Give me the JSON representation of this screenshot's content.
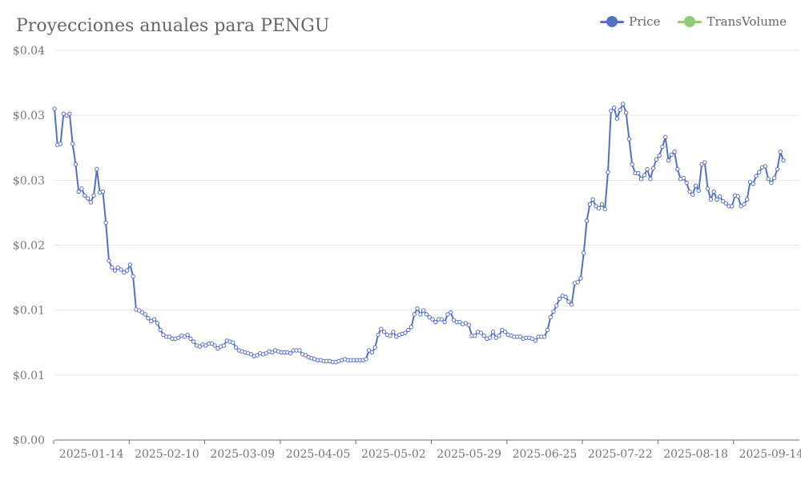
{
  "chart_data": {
    "type": "line",
    "title": "Proyecciones anuales para PENGU",
    "legend": [
      {
        "name": "Price",
        "color": "#5470c6"
      },
      {
        "name": "TransVolume",
        "color": "#91cc75"
      }
    ],
    "y_tick_labels": [
      "$0.00",
      "$0.01",
      "$0.01",
      "$0.02",
      "$0.03",
      "$0.03",
      "$0.04"
    ],
    "x_tick_labels": [
      "2025-01-14",
      "2025-02-10",
      "2025-03-09",
      "2025-04-05",
      "2025-05-02",
      "2025-05-29",
      "2025-06-25",
      "2025-07-22",
      "2025-08-18",
      "2025-09-14"
    ],
    "ylim": [
      0,
      0.04
    ],
    "grid": true,
    "legend_position": "top-right",
    "series": [
      {
        "name": "Price",
        "color": "#5470c6",
        "values": [
          0.034,
          0.0303,
          0.0304,
          0.0335,
          0.0333,
          0.0335,
          0.0304,
          0.0283,
          0.0255,
          0.0258,
          0.0251,
          0.0248,
          0.0244,
          0.0251,
          0.0278,
          0.0254,
          0.0255,
          0.0223,
          0.0184,
          0.0177,
          0.0174,
          0.0177,
          0.0175,
          0.0172,
          0.0174,
          0.018,
          0.0168,
          0.0134,
          0.0133,
          0.0131,
          0.0129,
          0.0125,
          0.0122,
          0.0124,
          0.012,
          0.0113,
          0.0108,
          0.0106,
          0.0106,
          0.0104,
          0.0104,
          0.0105,
          0.0107,
          0.0106,
          0.0108,
          0.0104,
          0.0101,
          0.0097,
          0.0096,
          0.0098,
          0.0097,
          0.0099,
          0.0099,
          0.0097,
          0.0094,
          0.0096,
          0.0097,
          0.0102,
          0.0101,
          0.01,
          0.0095,
          0.0092,
          0.0091,
          0.009,
          0.0089,
          0.0088,
          0.0086,
          0.0087,
          0.0089,
          0.0088,
          0.0089,
          0.0091,
          0.009,
          0.0092,
          0.0091,
          0.009,
          0.009,
          0.009,
          0.0089,
          0.0092,
          0.0092,
          0.0092,
          0.0088,
          0.0087,
          0.0085,
          0.0084,
          0.0083,
          0.0082,
          0.0082,
          0.0081,
          0.0081,
          0.0081,
          0.008,
          0.008,
          0.0081,
          0.0082,
          0.0083,
          0.0082,
          0.0082,
          0.0082,
          0.0082,
          0.0082,
          0.0082,
          0.0083,
          0.0092,
          0.009,
          0.0095,
          0.0108,
          0.0114,
          0.0111,
          0.0108,
          0.0107,
          0.0111,
          0.0106,
          0.0108,
          0.0109,
          0.011,
          0.0113,
          0.0116,
          0.0129,
          0.0135,
          0.0129,
          0.0133,
          0.0129,
          0.0126,
          0.0124,
          0.0121,
          0.0124,
          0.0124,
          0.0121,
          0.0129,
          0.0131,
          0.0123,
          0.0121,
          0.0121,
          0.0119,
          0.012,
          0.0118,
          0.0107,
          0.0107,
          0.0111,
          0.011,
          0.0107,
          0.0104,
          0.0105,
          0.0111,
          0.0105,
          0.0107,
          0.0113,
          0.0111,
          0.0108,
          0.0107,
          0.0106,
          0.0106,
          0.0106,
          0.0104,
          0.0105,
          0.0105,
          0.0104,
          0.0102,
          0.0106,
          0.0106,
          0.0106,
          0.0113,
          0.0126,
          0.0132,
          0.0138,
          0.0145,
          0.0148,
          0.0147,
          0.0142,
          0.0139,
          0.0161,
          0.0162,
          0.0166,
          0.0192,
          0.0225,
          0.0242,
          0.0247,
          0.024,
          0.0238,
          0.0242,
          0.0237,
          0.0275,
          0.0338,
          0.0341,
          0.033,
          0.0339,
          0.0345,
          0.0336,
          0.0309,
          0.0283,
          0.0274,
          0.0274,
          0.0268,
          0.0272,
          0.0278,
          0.0268,
          0.0279,
          0.0288,
          0.0292,
          0.0301,
          0.0311,
          0.0287,
          0.0293,
          0.0296,
          0.0278,
          0.0268,
          0.0269,
          0.0264,
          0.0255,
          0.0252,
          0.0261,
          0.0256,
          0.0283,
          0.0285,
          0.0258,
          0.0247,
          0.0255,
          0.0247,
          0.025,
          0.0245,
          0.0243,
          0.024,
          0.024,
          0.0251,
          0.025,
          0.024,
          0.0242,
          0.0247,
          0.0265,
          0.0263,
          0.0271,
          0.0275,
          0.028,
          0.0281,
          0.0268,
          0.0264,
          0.0269,
          0.0278,
          0.0296,
          0.0287
        ]
      }
    ]
  }
}
